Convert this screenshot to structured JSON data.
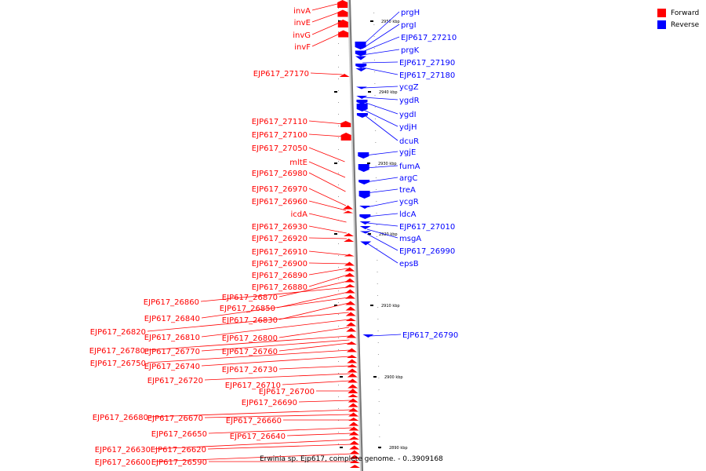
{
  "caption": "Erwinia sp. Ejp617, complete genome. - 0..3909168",
  "legend": [
    {
      "label": "Forward",
      "color": "#ff0000"
    },
    {
      "label": "Reverse",
      "color": "#0000ff"
    }
  ],
  "colors": {
    "forward": "#ff0000",
    "reverse": "#0000ff",
    "axis": "#888888"
  },
  "ticks": [
    "2950 kbp",
    "2940 kbp",
    "2930 kbp",
    "2920 kbp",
    "2910 kbp",
    "2900 kbp",
    "2890 kbp"
  ],
  "forward_genes": [
    "invA",
    "invE",
    "invG",
    "invF",
    "EJP617_27170",
    "EJP617_27110",
    "EJP617_27100",
    "EJP617_27050",
    "mltE",
    "EJP617_26980",
    "EJP617_26970",
    "EJP617_26960",
    "icdA",
    "EJP617_26930",
    "EJP617_26920",
    "EJP617_26910",
    "EJP617_26900",
    "EJP617_26890",
    "EJP617_26880",
    "EJP617_26870",
    "EJP617_26860",
    "EJP617_26850",
    "EJP617_26840",
    "EJP617_26830",
    "EJP617_26820",
    "EJP617_26810",
    "EJP617_26800",
    "EJP617_26780",
    "EJP617_26770",
    "EJP617_26760",
    "EJP617_26750",
    "EJP617_26740",
    "EJP617_26730",
    "EJP617_26720",
    "EJP617_26710",
    "EJP617_26700",
    "EJP617_26690",
    "EJP617_26680",
    "EJP617_26670",
    "EJP617_26660",
    "EJP617_26650",
    "EJP617_26640",
    "EJP617_26630",
    "EJP617_26620",
    "EJP617_26600",
    "EJP617_26590"
  ],
  "reverse_genes": [
    "prgH",
    "prgI",
    "EJP617_27210",
    "prgK",
    "EJP617_27190",
    "EJP617_27180",
    "ycgZ",
    "ygdR",
    "ygdI",
    "ydjH",
    "dcuR",
    "ygjE",
    "fumA",
    "argC",
    "treA",
    "ycgR",
    "ldcA",
    "EJP617_27010",
    "msgA",
    "EJP617_26990",
    "epsB",
    "EJP617_26790"
  ]
}
